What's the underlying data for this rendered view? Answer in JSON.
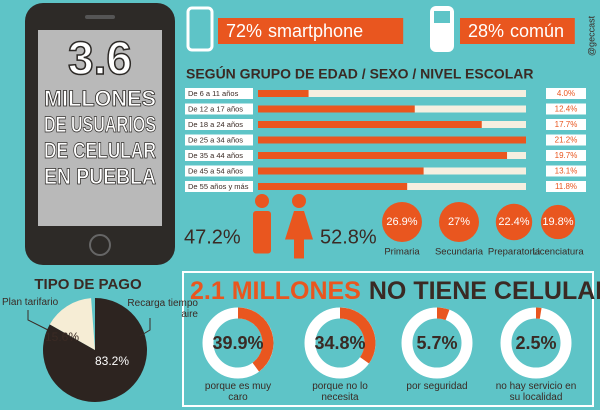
{
  "headline": {
    "number": "3.6",
    "lines": [
      "MILLONES",
      "DE USUARIOS",
      "DE CELULAR",
      "EN PUEBLA"
    ]
  },
  "device_types": {
    "categories": [
      "smartphone",
      "común"
    ],
    "values": [
      72,
      28
    ],
    "value_labels": [
      "72%",
      "28%"
    ]
  },
  "credit": "@geccast",
  "age_groups": {
    "title": "SEGÚN GRUPO DE EDAD / SEXO / NIVEL ESCOLAR",
    "categories": [
      "De 6 a 11 años",
      "De 12 a 17 años",
      "De 18 a 24 años",
      "De 25 a 34 años",
      "De 35 a 44 años",
      "De 45 a 54 años",
      "De 55 años y más"
    ],
    "values": [
      4.0,
      12.4,
      17.7,
      21.2,
      19.7,
      13.1,
      11.8
    ],
    "value_labels": [
      "4.0%",
      "12.4%",
      "17.7%",
      "21.2%",
      "19.7%",
      "13.1%",
      "11.8%"
    ]
  },
  "sex": {
    "values": [
      47.2,
      52.8
    ],
    "value_labels": [
      "47.2%",
      "52.8%"
    ]
  },
  "education": {
    "categories": [
      "Primaria",
      "Secundaria",
      "Preparatoria",
      "Licenciatura"
    ],
    "values": [
      26.9,
      27,
      22.4,
      19.8
    ],
    "value_labels": [
      "26.9%",
      "27%",
      "22.4%",
      "19.8%"
    ]
  },
  "payment": {
    "title": "TIPO DE PAGO",
    "categories": [
      "Plan tarifario",
      "Recarga tiempo aire"
    ],
    "values": [
      15.6,
      83.2
    ],
    "value_labels": [
      "15.6%",
      "83.2%"
    ]
  },
  "no_phone": {
    "title_highlight": "2.1 MILLONES",
    "title_rest": "NO TIENE CELULAR",
    "categories": [
      "porque es muy caro",
      "porque no lo necesita",
      "por seguridad",
      "no hay servicio en su localidad"
    ],
    "values": [
      39.9,
      34.8,
      5.7,
      2.5
    ],
    "value_labels": [
      "39.9%",
      "34.8%",
      "5.7%",
      "2.5%"
    ]
  }
}
